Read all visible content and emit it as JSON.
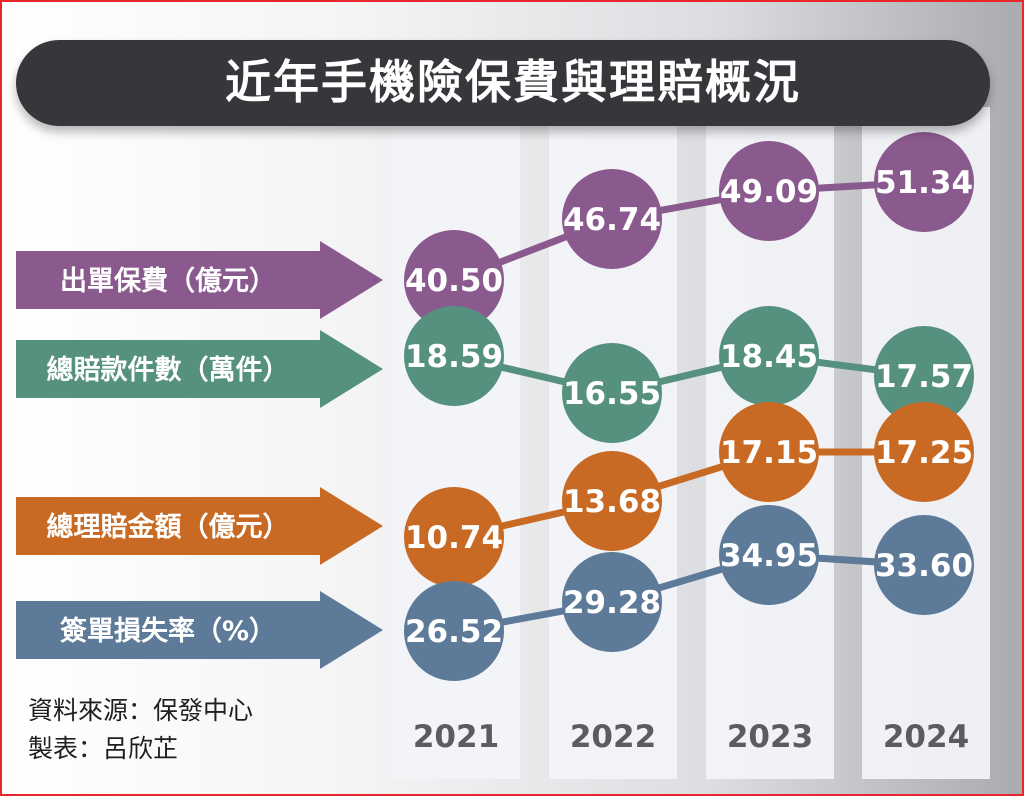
{
  "title": "近年手機險保費與理賠概況",
  "source_line": "資料來源：保發中心",
  "author_line": "製表：呂欣芷",
  "chart_data": {
    "type": "line",
    "categories": [
      "2021",
      "2022",
      "2023",
      "2024"
    ],
    "series": [
      {
        "name": "出單保費（億元）",
        "values": [
          40.5,
          46.74,
          49.09,
          51.34
        ],
        "display": [
          "40.50",
          "46.74",
          "49.09",
          "51.34"
        ],
        "color": "#8a5a8e"
      },
      {
        "name": "總賠款件數（萬件）",
        "values": [
          18.59,
          16.55,
          18.45,
          17.57
        ],
        "display": [
          "18.59",
          "16.55",
          "18.45",
          "17.57"
        ],
        "color": "#56917f"
      },
      {
        "name": "總理賠金額（億元）",
        "values": [
          10.74,
          13.68,
          17.15,
          17.25
        ],
        "display": [
          "10.74",
          "13.68",
          "17.15",
          "17.25"
        ],
        "color": "#c86a24"
      },
      {
        "name": "簽單損失率（%）",
        "values": [
          26.52,
          29.28,
          34.95,
          33.6
        ],
        "display": [
          "26.52",
          "29.28",
          "34.95",
          "33.60"
        ],
        "color": "#5d7a98"
      }
    ]
  }
}
